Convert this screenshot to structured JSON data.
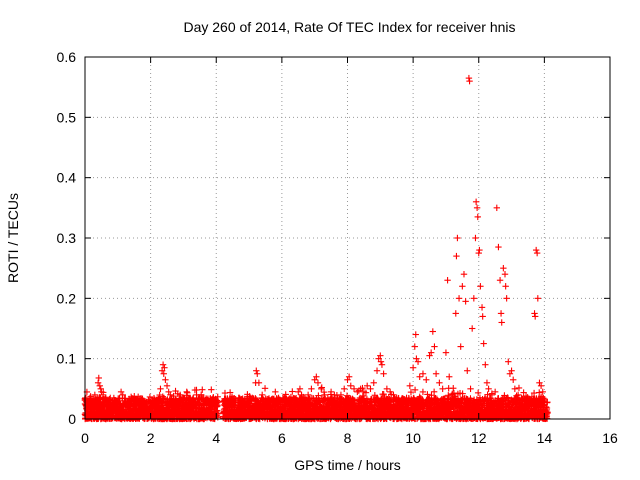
{
  "chart_data": {
    "type": "scatter",
    "title": "Day 260 of 2014, Rate Of TEC Index for receiver hnis",
    "xlabel": "GPS time / hours",
    "ylabel": "ROTI / TECUs",
    "xlim": [
      0,
      16
    ],
    "ylim": [
      0,
      0.6
    ],
    "xticks": [
      "0",
      "2",
      "4",
      "6",
      "8",
      "10",
      "12",
      "14",
      "16"
    ],
    "yticks": [
      "0",
      "0.1",
      "0.2",
      "0.3",
      "0.4",
      "0.5",
      "0.6"
    ],
    "grid": true,
    "marker": "+",
    "color": "#ff0000",
    "series": [
      {
        "name": "ROTI",
        "baseline_noise": {
          "x_range": [
            0,
            14.1
          ],
          "typical_y_range": [
            0.0,
            0.035
          ]
        },
        "points": [
          [
            0.0,
            0.025
          ],
          [
            0.05,
            0.03
          ],
          [
            0.1,
            0.02
          ],
          [
            0.15,
            0.035
          ],
          [
            0.2,
            0.018
          ],
          [
            0.25,
            0.028
          ],
          [
            0.3,
            0.04
          ],
          [
            0.4,
            0.06
          ],
          [
            0.42,
            0.068
          ],
          [
            0.45,
            0.055
          ],
          [
            0.48,
            0.05
          ],
          [
            0.5,
            0.045
          ],
          [
            0.55,
            0.04
          ],
          [
            0.6,
            0.032
          ],
          [
            0.7,
            0.03
          ],
          [
            0.8,
            0.025
          ],
          [
            0.9,
            0.03
          ],
          [
            1.0,
            0.028
          ],
          [
            1.1,
            0.045
          ],
          [
            1.15,
            0.04
          ],
          [
            1.2,
            0.03
          ],
          [
            1.3,
            0.02
          ],
          [
            1.4,
            0.025
          ],
          [
            1.5,
            0.022
          ],
          [
            1.6,
            0.03
          ],
          [
            1.7,
            0.028
          ],
          [
            1.8,
            0.025
          ],
          [
            1.9,
            0.02
          ],
          [
            2.0,
            0.028
          ],
          [
            2.1,
            0.025
          ],
          [
            2.2,
            0.03
          ],
          [
            2.3,
            0.05
          ],
          [
            2.35,
            0.08
          ],
          [
            2.38,
            0.09
          ],
          [
            2.4,
            0.075
          ],
          [
            2.42,
            0.085
          ],
          [
            2.45,
            0.065
          ],
          [
            2.5,
            0.055
          ],
          [
            2.55,
            0.045
          ],
          [
            2.6,
            0.04
          ],
          [
            2.7,
            0.038
          ],
          [
            2.8,
            0.03
          ],
          [
            2.9,
            0.04
          ],
          [
            3.0,
            0.035
          ],
          [
            3.1,
            0.045
          ],
          [
            3.2,
            0.03
          ],
          [
            3.3,
            0.035
          ],
          [
            3.35,
            0.048
          ],
          [
            3.4,
            0.04
          ],
          [
            3.5,
            0.03
          ],
          [
            3.6,
            0.025
          ],
          [
            3.7,
            0.03
          ],
          [
            3.8,
            0.028
          ],
          [
            3.9,
            0.035
          ],
          [
            4.0,
            0.02
          ],
          [
            4.3,
            0.025
          ],
          [
            4.5,
            0.03
          ],
          [
            4.6,
            0.028
          ],
          [
            4.7,
            0.035
          ],
          [
            4.8,
            0.03
          ],
          [
            4.9,
            0.025
          ],
          [
            5.0,
            0.03
          ],
          [
            5.1,
            0.035
          ],
          [
            5.2,
            0.06
          ],
          [
            5.22,
            0.08
          ],
          [
            5.25,
            0.075
          ],
          [
            5.3,
            0.06
          ],
          [
            5.4,
            0.04
          ],
          [
            5.5,
            0.03
          ],
          [
            5.6,
            0.028
          ],
          [
            5.7,
            0.03
          ],
          [
            5.8,
            0.045
          ],
          [
            5.9,
            0.035
          ],
          [
            6.0,
            0.025
          ],
          [
            6.1,
            0.03
          ],
          [
            6.2,
            0.028
          ],
          [
            6.3,
            0.025
          ],
          [
            6.4,
            0.03
          ],
          [
            6.5,
            0.045
          ],
          [
            6.55,
            0.05
          ],
          [
            6.6,
            0.04
          ],
          [
            6.7,
            0.035
          ],
          [
            6.8,
            0.04
          ],
          [
            6.9,
            0.05
          ],
          [
            7.0,
            0.065
          ],
          [
            7.05,
            0.07
          ],
          [
            7.1,
            0.06
          ],
          [
            7.2,
            0.05
          ],
          [
            7.3,
            0.04
          ],
          [
            7.4,
            0.035
          ],
          [
            7.5,
            0.045
          ],
          [
            7.6,
            0.04
          ],
          [
            7.7,
            0.035
          ],
          [
            7.8,
            0.04
          ],
          [
            7.9,
            0.05
          ],
          [
            8.0,
            0.065
          ],
          [
            8.05,
            0.07
          ],
          [
            8.1,
            0.055
          ],
          [
            8.2,
            0.05
          ],
          [
            8.3,
            0.045
          ],
          [
            8.4,
            0.05
          ],
          [
            8.5,
            0.045
          ],
          [
            8.6,
            0.055
          ],
          [
            8.7,
            0.05
          ],
          [
            8.8,
            0.06
          ],
          [
            8.9,
            0.08
          ],
          [
            8.95,
            0.1
          ],
          [
            9.0,
            0.105
          ],
          [
            9.02,
            0.095
          ],
          [
            9.05,
            0.09
          ],
          [
            9.1,
            0.075
          ],
          [
            9.2,
            0.05
          ],
          [
            9.3,
            0.045
          ],
          [
            9.4,
            0.04
          ],
          [
            9.5,
            0.035
          ],
          [
            9.6,
            0.03
          ],
          [
            9.8,
            0.035
          ],
          [
            9.9,
            0.055
          ],
          [
            10.0,
            0.085
          ],
          [
            10.05,
            0.12
          ],
          [
            10.08,
            0.14
          ],
          [
            10.1,
            0.1
          ],
          [
            10.15,
            0.095
          ],
          [
            10.2,
            0.07
          ],
          [
            10.3,
            0.075
          ],
          [
            10.4,
            0.065
          ],
          [
            10.5,
            0.105
          ],
          [
            10.55,
            0.11
          ],
          [
            10.6,
            0.145
          ],
          [
            10.65,
            0.12
          ],
          [
            10.7,
            0.075
          ],
          [
            10.8,
            0.06
          ],
          [
            10.9,
            0.05
          ],
          [
            11.0,
            0.11
          ],
          [
            11.05,
            0.23
          ],
          [
            11.1,
            0.07
          ],
          [
            11.2,
            0.04
          ],
          [
            11.3,
            0.175
          ],
          [
            11.32,
            0.27
          ],
          [
            11.35,
            0.3
          ],
          [
            11.4,
            0.2
          ],
          [
            11.45,
            0.12
          ],
          [
            11.5,
            0.22
          ],
          [
            11.55,
            0.24
          ],
          [
            11.6,
            0.195
          ],
          [
            11.65,
            0.08
          ],
          [
            11.7,
            0.565
          ],
          [
            11.72,
            0.56
          ],
          [
            11.75,
            0.05
          ],
          [
            11.8,
            0.15
          ],
          [
            11.85,
            0.2
          ],
          [
            11.9,
            0.3
          ],
          [
            11.92,
            0.36
          ],
          [
            11.95,
            0.35
          ],
          [
            11.97,
            0.335
          ],
          [
            12.0,
            0.275
          ],
          [
            12.02,
            0.28
          ],
          [
            12.05,
            0.22
          ],
          [
            12.1,
            0.185
          ],
          [
            12.12,
            0.17
          ],
          [
            12.15,
            0.125
          ],
          [
            12.2,
            0.09
          ],
          [
            12.25,
            0.06
          ],
          [
            12.3,
            0.05
          ],
          [
            12.4,
            0.04
          ],
          [
            12.5,
            0.045
          ],
          [
            12.55,
            0.35
          ],
          [
            12.6,
            0.285
          ],
          [
            12.65,
            0.23
          ],
          [
            12.68,
            0.175
          ],
          [
            12.7,
            0.16
          ],
          [
            12.75,
            0.25
          ],
          [
            12.8,
            0.24
          ],
          [
            12.82,
            0.22
          ],
          [
            12.85,
            0.2
          ],
          [
            12.9,
            0.095
          ],
          [
            12.95,
            0.075
          ],
          [
            13.0,
            0.08
          ],
          [
            13.05,
            0.065
          ],
          [
            13.1,
            0.05
          ],
          [
            13.2,
            0.04
          ],
          [
            13.3,
            0.035
          ],
          [
            13.4,
            0.03
          ],
          [
            13.5,
            0.025
          ],
          [
            13.6,
            0.03
          ],
          [
            13.7,
            0.175
          ],
          [
            13.72,
            0.17
          ],
          [
            13.75,
            0.28
          ],
          [
            13.78,
            0.275
          ],
          [
            13.8,
            0.2
          ],
          [
            13.85,
            0.06
          ],
          [
            13.9,
            0.055
          ],
          [
            13.95,
            0.045
          ],
          [
            14.0,
            0.03
          ],
          [
            14.05,
            0.02
          ],
          [
            14.1,
            0.01
          ]
        ]
      }
    ]
  }
}
